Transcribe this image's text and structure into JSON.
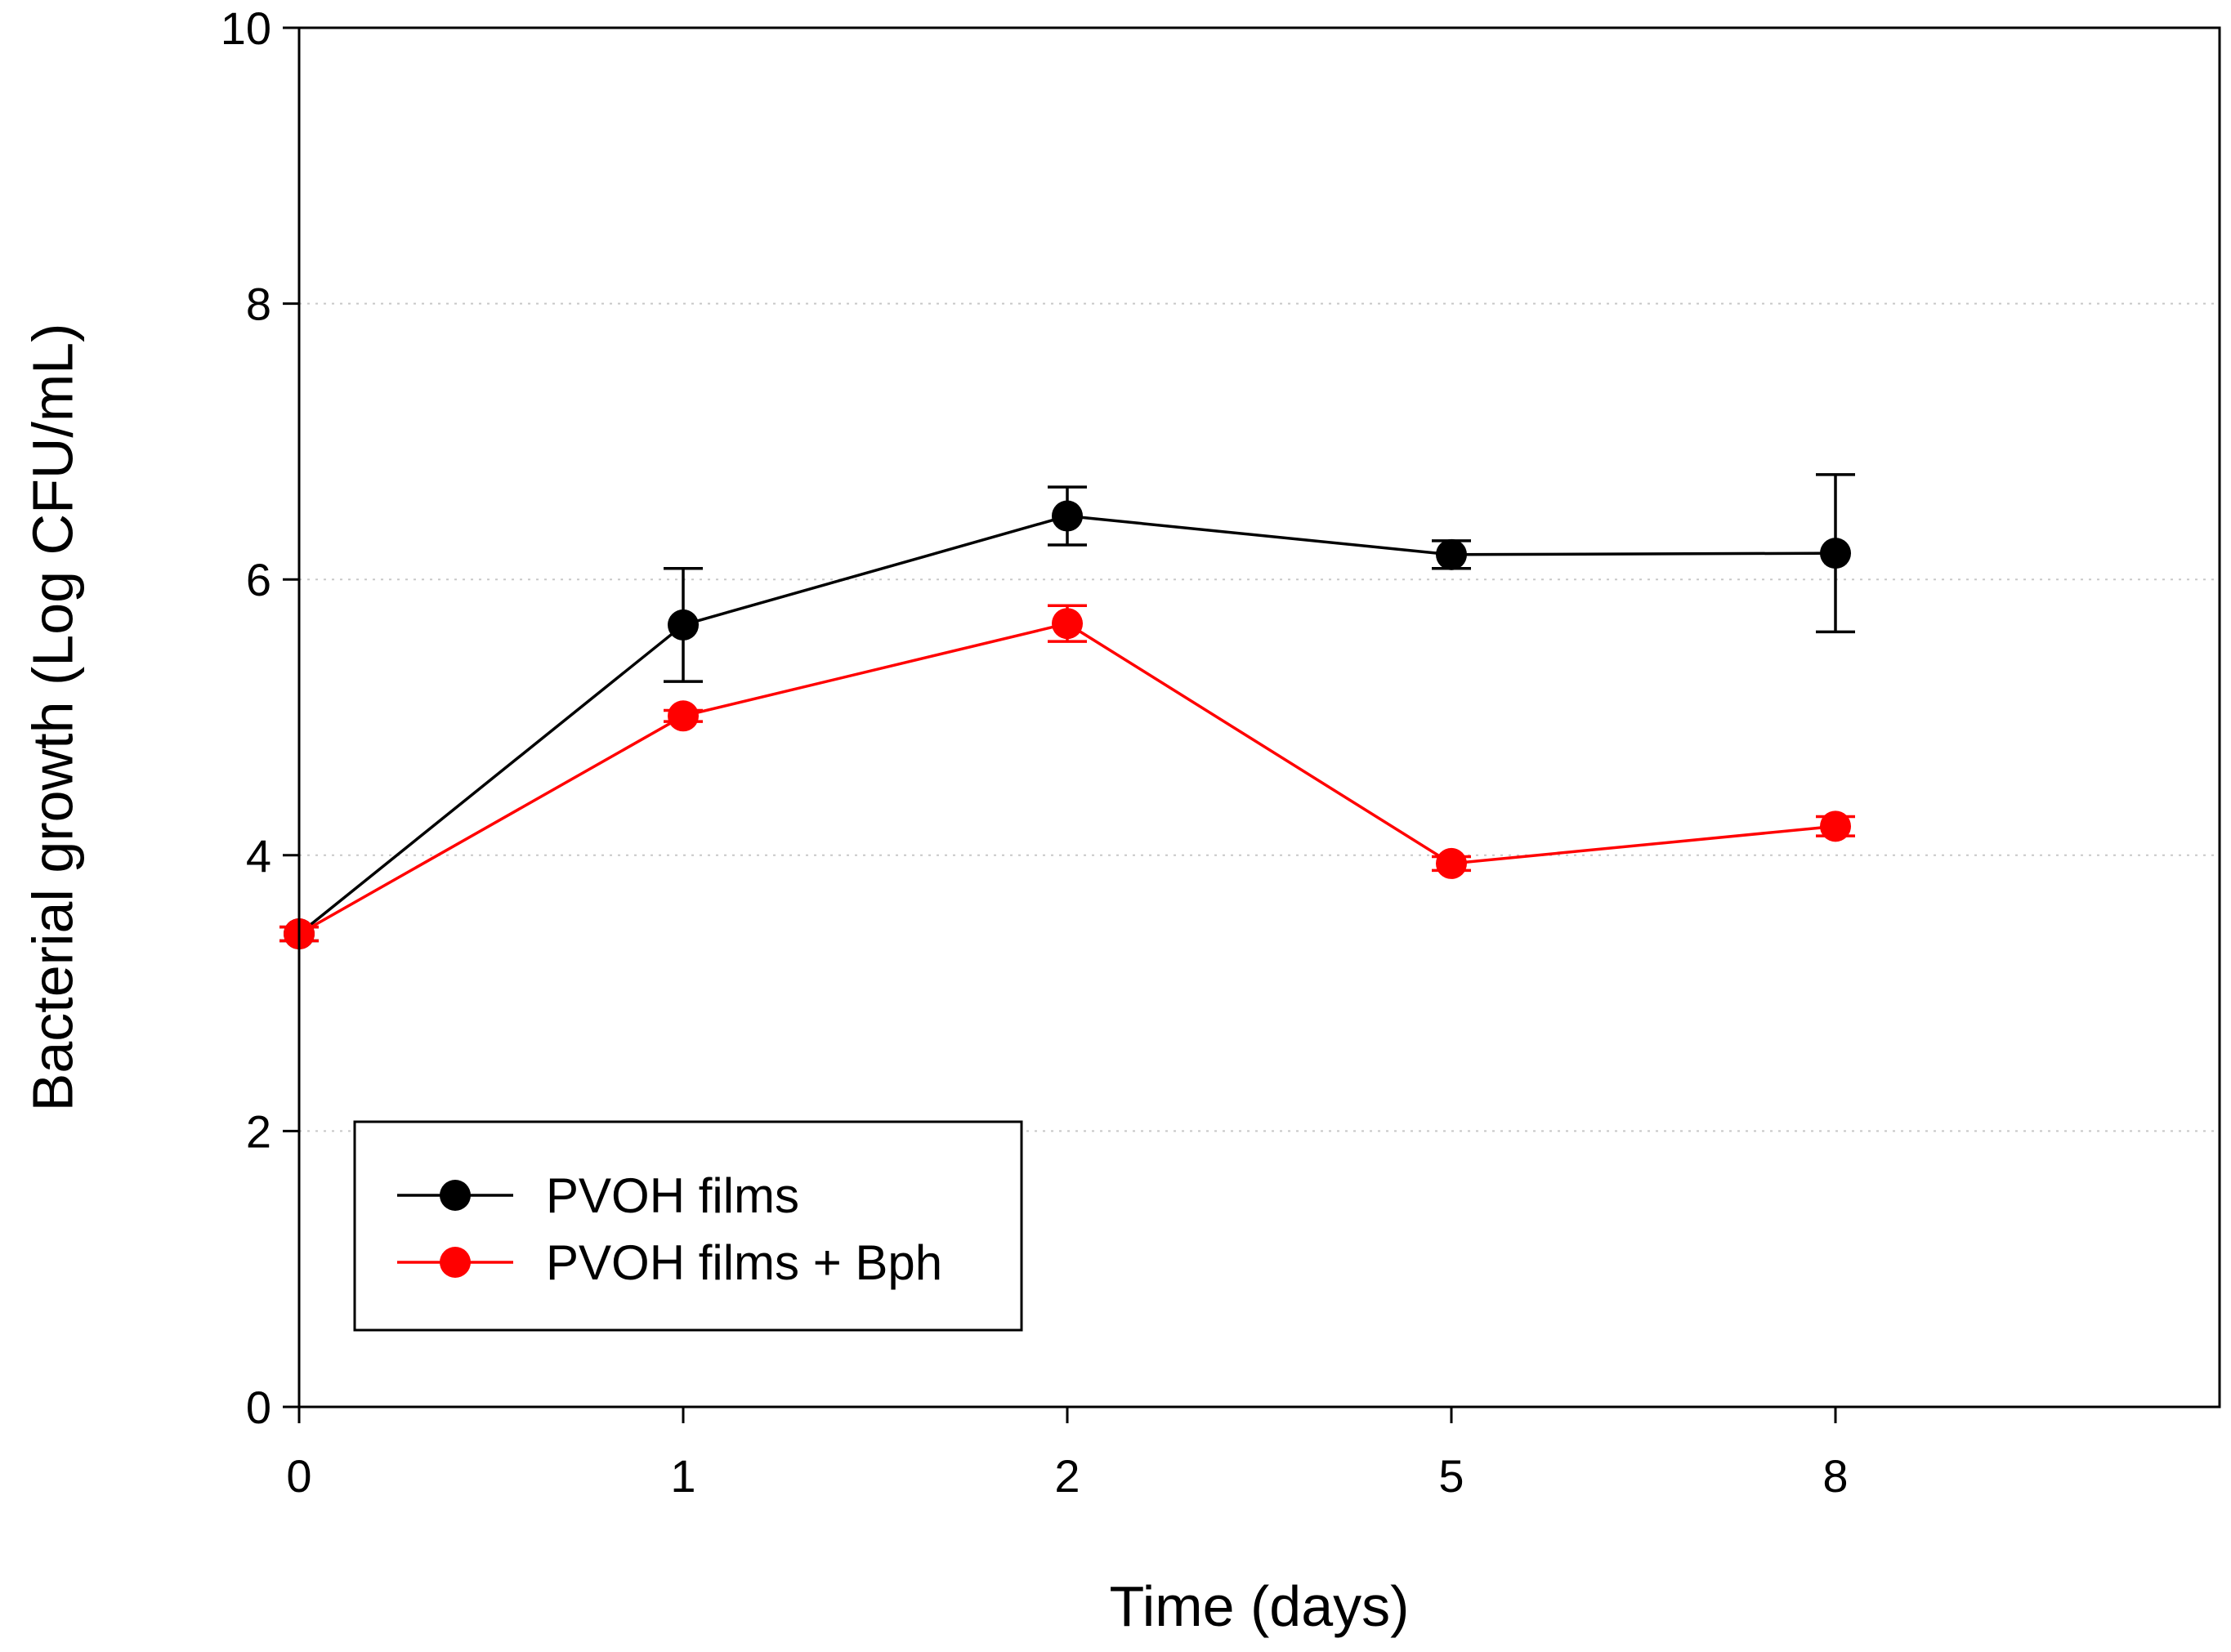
{
  "chart_data": {
    "type": "line",
    "title": "",
    "xlabel": "Time (days)",
    "ylabel": "Bacterial growth (Log CFU/mL)",
    "categories": [
      "0",
      "1",
      "2",
      "5",
      "8"
    ],
    "ylim": [
      0,
      10
    ],
    "yticks": [
      "0",
      "2",
      "4",
      "6",
      "8",
      "10"
    ],
    "grid": "horizontal dotted",
    "legend": "bottom-left",
    "series": [
      {
        "name": "PVOH films",
        "color": "#000000",
        "values": [
          3.43,
          5.67,
          6.46,
          6.18,
          6.19
        ],
        "error": [
          0.05,
          0.41,
          0.21,
          0.1,
          0.57
        ]
      },
      {
        "name": "PVOH films + Bph",
        "color": "#ff0000",
        "values": [
          3.43,
          5.01,
          5.68,
          3.94,
          4.21
        ],
        "error": [
          0.05,
          0.04,
          0.13,
          0.05,
          0.07
        ]
      }
    ]
  }
}
